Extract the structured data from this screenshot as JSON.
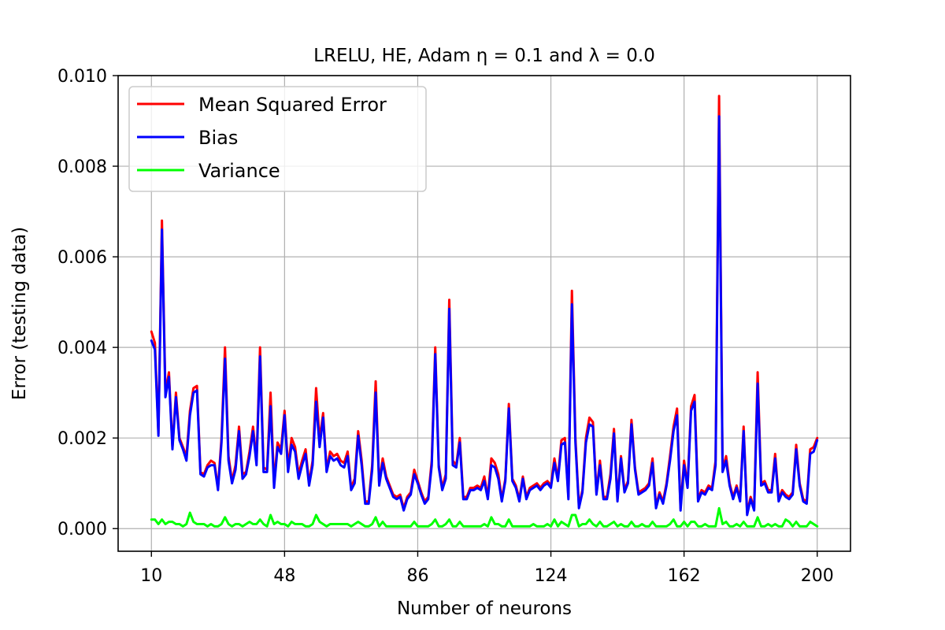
{
  "chart_data": {
    "type": "line",
    "title": "LRELU, HE, Adam η = 0.1 and λ = 0.0",
    "xlabel": "Number of neurons",
    "ylabel": "Error (testing data)",
    "xlim": [
      0.5,
      209.5
    ],
    "ylim": [
      -0.0005,
      0.01
    ],
    "xticks": [
      10,
      48,
      86,
      124,
      162,
      200
    ],
    "xtick_labels": [
      "10",
      "48",
      "86",
      "124",
      "162",
      "200"
    ],
    "yticks": [
      0.0,
      0.002,
      0.004,
      0.006,
      0.008,
      0.01
    ],
    "ytick_labels": [
      "0.000",
      "0.002",
      "0.004",
      "0.006",
      "0.008",
      "0.010"
    ],
    "grid": true,
    "legend_position": "top-left",
    "x_start": 10,
    "x_step": 1,
    "series": [
      {
        "name": "Mean Squared Error",
        "color": "#ff0000",
        "values": [
          0.00435,
          0.0041,
          0.0021,
          0.0068,
          0.003,
          0.00345,
          0.0018,
          0.003,
          0.002,
          0.0018,
          0.0016,
          0.0026,
          0.0031,
          0.00315,
          0.00125,
          0.0012,
          0.0014,
          0.0015,
          0.00145,
          0.0009,
          0.002,
          0.004,
          0.0016,
          0.00105,
          0.0014,
          0.00225,
          0.0012,
          0.00125,
          0.0017,
          0.00225,
          0.0015,
          0.004,
          0.00135,
          0.0013,
          0.003,
          0.001,
          0.0019,
          0.00175,
          0.0026,
          0.00135,
          0.002,
          0.0018,
          0.0012,
          0.0015,
          0.00175,
          0.001,
          0.0015,
          0.0031,
          0.00195,
          0.00255,
          0.0013,
          0.0017,
          0.0016,
          0.00165,
          0.0015,
          0.00145,
          0.0017,
          0.0009,
          0.0011,
          0.00215,
          0.0015,
          0.0006,
          0.0006,
          0.0014,
          0.00325,
          0.001,
          0.00155,
          0.00115,
          0.00095,
          0.00075,
          0.0007,
          0.00075,
          0.00045,
          0.0007,
          0.0008,
          0.0013,
          0.00105,
          0.0008,
          0.0006,
          0.0007,
          0.0015,
          0.004,
          0.0014,
          0.0009,
          0.0012,
          0.00505,
          0.0015,
          0.0014,
          0.002,
          0.0007,
          0.0007,
          0.0009,
          0.0009,
          0.00095,
          0.0009,
          0.00115,
          0.0007,
          0.00155,
          0.00145,
          0.0012,
          0.00065,
          0.0011,
          0.00275,
          0.0011,
          0.00095,
          0.00065,
          0.00115,
          0.0007,
          0.0009,
          0.00095,
          0.001,
          0.0009,
          0.001,
          0.00105,
          0.00095,
          0.00155,
          0.0011,
          0.00195,
          0.002,
          0.0007,
          0.00525,
          0.002,
          0.0005,
          0.00085,
          0.002,
          0.00245,
          0.00235,
          0.0008,
          0.0015,
          0.0007,
          0.0007,
          0.0012,
          0.0022,
          0.00065,
          0.0016,
          0.00085,
          0.00105,
          0.0024,
          0.00135,
          0.0008,
          0.00085,
          0.0009,
          0.001,
          0.00155,
          0.0005,
          0.0008,
          0.0006,
          0.001,
          0.0016,
          0.00225,
          0.00265,
          0.00045,
          0.0015,
          0.00095,
          0.0027,
          0.00295,
          0.00065,
          0.00085,
          0.0008,
          0.00095,
          0.0009,
          0.0015,
          0.00955,
          0.0013,
          0.0016,
          0.001,
          0.0007,
          0.00095,
          0.00065,
          0.00225,
          0.00035,
          0.0007,
          0.00045,
          0.00345,
          0.001,
          0.00105,
          0.00085,
          0.00085,
          0.00165,
          0.00065,
          0.00085,
          0.00075,
          0.0007,
          0.0008,
          0.00185,
          0.001,
          0.00065,
          0.0006,
          0.00175,
          0.0018,
          0.002
        ]
      },
      {
        "name": "Bias",
        "color": "#0000ff",
        "values": [
          0.00415,
          0.00395,
          0.00205,
          0.0066,
          0.0029,
          0.00335,
          0.00175,
          0.0029,
          0.00195,
          0.00175,
          0.0015,
          0.0025,
          0.003,
          0.00305,
          0.0012,
          0.00115,
          0.00135,
          0.0014,
          0.0014,
          0.00085,
          0.0019,
          0.00375,
          0.0015,
          0.001,
          0.0013,
          0.00215,
          0.0011,
          0.0012,
          0.0016,
          0.00215,
          0.0014,
          0.0038,
          0.00125,
          0.00125,
          0.0027,
          0.0009,
          0.0018,
          0.00165,
          0.0025,
          0.00125,
          0.00185,
          0.0017,
          0.0011,
          0.0014,
          0.00165,
          0.00095,
          0.0014,
          0.0028,
          0.0018,
          0.00245,
          0.00125,
          0.0016,
          0.0015,
          0.00155,
          0.0014,
          0.00135,
          0.0016,
          0.00085,
          0.001,
          0.00205,
          0.0014,
          0.00055,
          0.00055,
          0.0013,
          0.003,
          0.00095,
          0.00145,
          0.0011,
          0.0009,
          0.0007,
          0.00065,
          0.0007,
          0.0004,
          0.00065,
          0.00075,
          0.0012,
          0.001,
          0.00075,
          0.00055,
          0.00065,
          0.0014,
          0.00385,
          0.00135,
          0.00085,
          0.0011,
          0.00485,
          0.0014,
          0.00135,
          0.0019,
          0.00065,
          0.00065,
          0.00085,
          0.00085,
          0.0009,
          0.00085,
          0.00105,
          0.00065,
          0.0014,
          0.00135,
          0.0011,
          0.0006,
          0.00105,
          0.00265,
          0.00105,
          0.0009,
          0.0006,
          0.0011,
          0.00065,
          0.00085,
          0.0009,
          0.00095,
          0.00085,
          0.00095,
          0.001,
          0.0009,
          0.00145,
          0.00105,
          0.00185,
          0.0019,
          0.00065,
          0.00495,
          0.0019,
          0.00045,
          0.0008,
          0.0019,
          0.0023,
          0.00225,
          0.00075,
          0.0014,
          0.00065,
          0.00065,
          0.0011,
          0.0021,
          0.0006,
          0.00155,
          0.0008,
          0.001,
          0.0023,
          0.0013,
          0.00075,
          0.0008,
          0.00085,
          0.00095,
          0.00145,
          0.00045,
          0.00075,
          0.00055,
          0.00095,
          0.0015,
          0.00215,
          0.0025,
          0.0004,
          0.0014,
          0.0009,
          0.0026,
          0.0028,
          0.0006,
          0.0008,
          0.00075,
          0.0009,
          0.00085,
          0.0014,
          0.0091,
          0.00125,
          0.0015,
          0.00095,
          0.00065,
          0.0009,
          0.0006,
          0.00215,
          0.0003,
          0.00065,
          0.0004,
          0.0032,
          0.00095,
          0.001,
          0.0008,
          0.0008,
          0.00155,
          0.0006,
          0.0008,
          0.0007,
          0.00065,
          0.00075,
          0.00175,
          0.00095,
          0.0006,
          0.00055,
          0.00165,
          0.0017,
          0.00195
        ]
      },
      {
        "name": "Variance",
        "color": "#00ff00",
        "values": [
          0.0002,
          0.0002,
          0.0001,
          0.0002,
          0.0001,
          0.00015,
          0.00015,
          0.0001,
          0.0001,
          5e-05,
          0.0001,
          0.00035,
          0.00015,
          0.0001,
          0.0001,
          0.0001,
          5e-05,
          0.0001,
          5e-05,
          5e-05,
          0.0001,
          0.00025,
          0.0001,
          5e-05,
          0.0001,
          0.0001,
          5e-05,
          0.0001,
          0.00015,
          0.0001,
          0.0001,
          0.0002,
          0.0001,
          5e-05,
          0.0003,
          0.0001,
          0.00015,
          0.0001,
          0.0001,
          5e-05,
          0.00015,
          0.0001,
          0.0001,
          0.0001,
          5e-05,
          5e-05,
          0.0001,
          0.0003,
          0.00015,
          0.0001,
          5e-05,
          0.0001,
          0.0001,
          0.0001,
          0.0001,
          0.0001,
          0.0001,
          5e-05,
          0.0001,
          0.00015,
          0.0001,
          5e-05,
          5e-05,
          0.0001,
          0.00025,
          5e-05,
          0.00015,
          5e-05,
          5e-05,
          5e-05,
          5e-05,
          5e-05,
          5e-05,
          5e-05,
          5e-05,
          0.00015,
          5e-05,
          5e-05,
          5e-05,
          5e-05,
          0.0001,
          0.0002,
          5e-05,
          5e-05,
          0.0001,
          0.0002,
          5e-05,
          5e-05,
          0.00015,
          5e-05,
          5e-05,
          5e-05,
          5e-05,
          5e-05,
          5e-05,
          0.0001,
          5e-05,
          0.00025,
          0.0001,
          0.0001,
          5e-05,
          5e-05,
          0.0002,
          5e-05,
          5e-05,
          5e-05,
          5e-05,
          5e-05,
          5e-05,
          0.0001,
          5e-05,
          5e-05,
          5e-05,
          0.0001,
          5e-05,
          0.0002,
          5e-05,
          0.00015,
          0.0001,
          5e-05,
          0.0003,
          0.0003,
          5e-05,
          0.0001,
          0.0001,
          0.0002,
          0.0001,
          5e-05,
          0.00015,
          5e-05,
          5e-05,
          0.0001,
          0.00015,
          5e-05,
          0.0001,
          5e-05,
          5e-05,
          0.00015,
          5e-05,
          5e-05,
          0.0001,
          5e-05,
          5e-05,
          0.00015,
          5e-05,
          5e-05,
          5e-05,
          5e-05,
          0.0001,
          0.0002,
          5e-05,
          5e-05,
          0.00015,
          5e-05,
          0.00015,
          0.00015,
          5e-05,
          5e-05,
          0.0001,
          5e-05,
          5e-05,
          5e-05,
          0.00045,
          0.0001,
          0.00015,
          5e-05,
          5e-05,
          0.0001,
          5e-05,
          0.00015,
          5e-05,
          5e-05,
          5e-05,
          0.00025,
          5e-05,
          5e-05,
          0.0001,
          5e-05,
          0.0001,
          5e-05,
          5e-05,
          0.0002,
          0.00015,
          5e-05,
          0.00015,
          5e-05,
          5e-05,
          5e-05,
          0.00015,
          0.0001,
          5e-05
        ]
      }
    ]
  }
}
